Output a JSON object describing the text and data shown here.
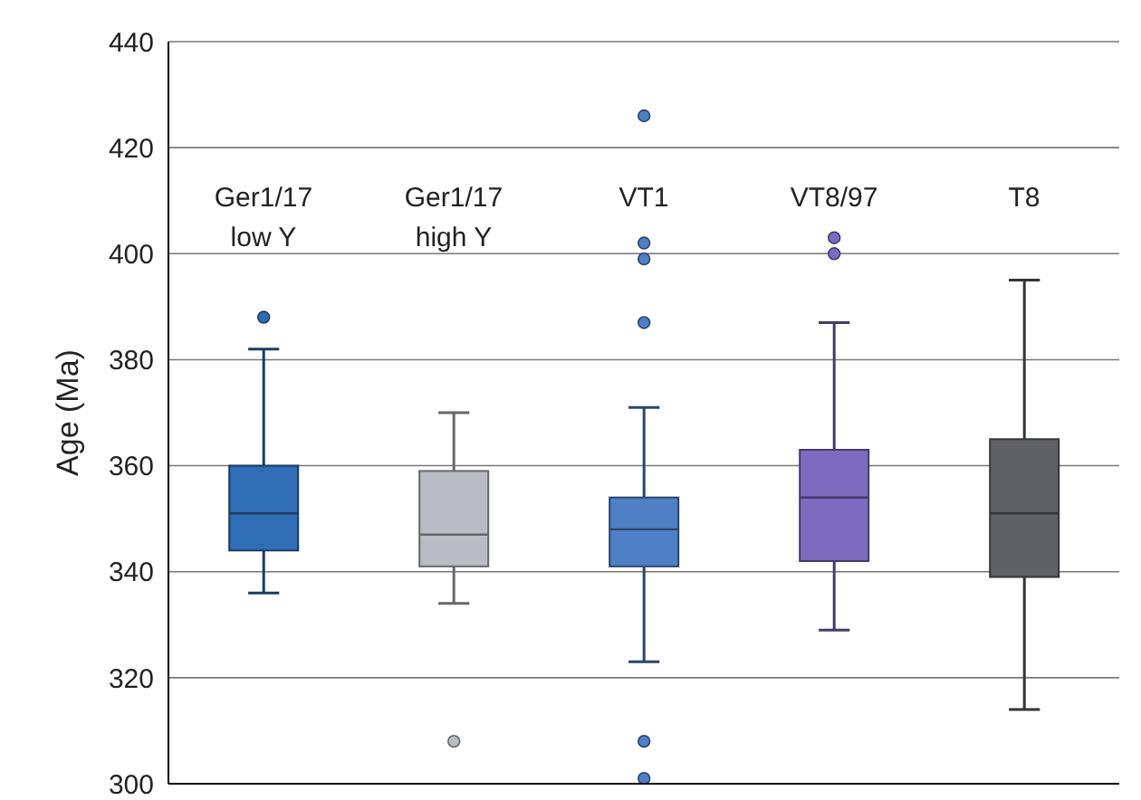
{
  "chart_data": {
    "type": "box",
    "categories": [
      "Ger1/17\nlow Y",
      "Ger1/17\nhigh Y",
      "VT1",
      "VT8/97",
      "T8"
    ],
    "colors": [
      "#2f6db5",
      "#b9bcc2",
      "#4f7fc4",
      "#7b6cc0",
      "#5f6165"
    ],
    "boxes": [
      {
        "low": 336,
        "q1": 344,
        "median": 351,
        "q3": 360,
        "high": 382,
        "outliers": [
          388
        ]
      },
      {
        "low": 334,
        "q1": 341,
        "median": 347,
        "q3": 359,
        "high": 370,
        "outliers": [
          308
        ]
      },
      {
        "low": 323,
        "q1": 341,
        "median": 348,
        "q3": 354,
        "high": 371,
        "outliers": [
          426,
          402,
          399,
          387,
          308,
          301
        ]
      },
      {
        "low": 329,
        "q1": 342,
        "median": 354,
        "q3": 363,
        "high": 387,
        "outliers": [
          403,
          400
        ]
      },
      {
        "low": 314,
        "q1": 339,
        "median": 351,
        "q3": 365,
        "high": 395
      }
    ],
    "ylabel": "Age (Ma)",
    "ylim": [
      300,
      440
    ],
    "yticks": [
      300,
      320,
      340,
      360,
      380,
      400,
      420,
      440
    ],
    "grid": "y"
  }
}
